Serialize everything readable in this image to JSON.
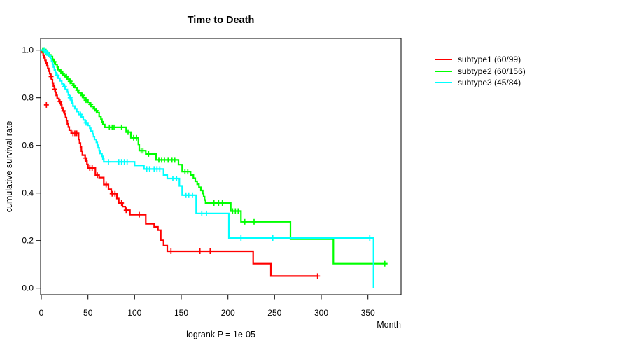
{
  "chart_data": {
    "type": "line",
    "subtype": "kaplan-meier-survival",
    "title": "Time to Death",
    "xlabel": "Month",
    "ylabel": "cumulative survival rate",
    "annotation": "logrank P = 1e-05",
    "x_ticks": [
      0,
      50,
      100,
      150,
      200,
      250,
      300,
      350
    ],
    "y_ticks": [
      0.0,
      0.2,
      0.4,
      0.6,
      0.8,
      1.0
    ],
    "xlim": [
      0,
      385
    ],
    "ylim": [
      0,
      1.05
    ],
    "grid": false,
    "legend_position": "right-outside",
    "series": [
      {
        "name": "subtype1 (60/99)",
        "color": "#FF0000",
        "events": 60,
        "n": 99,
        "steps": [
          [
            0,
            1.0
          ],
          [
            1,
            0.99
          ],
          [
            2,
            0.979
          ],
          [
            3,
            0.968
          ],
          [
            4,
            0.957
          ],
          [
            5,
            0.946
          ],
          [
            6,
            0.934
          ],
          [
            7,
            0.923
          ],
          [
            8,
            0.912
          ],
          [
            9,
            0.901
          ],
          [
            10,
            0.889
          ],
          [
            11,
            0.876
          ],
          [
            12,
            0.862
          ],
          [
            13,
            0.849
          ],
          [
            14,
            0.836
          ],
          [
            15,
            0.823
          ],
          [
            16,
            0.81
          ],
          [
            17,
            0.797
          ],
          [
            19,
            0.784
          ],
          [
            21,
            0.771
          ],
          [
            22,
            0.758
          ],
          [
            23,
            0.745
          ],
          [
            25,
            0.731
          ],
          [
            26,
            0.717
          ],
          [
            27,
            0.704
          ],
          [
            28,
            0.69
          ],
          [
            29,
            0.677
          ],
          [
            30,
            0.664
          ],
          [
            32,
            0.651
          ],
          [
            40,
            0.625
          ],
          [
            41,
            0.61
          ],
          [
            42,
            0.593
          ],
          [
            43,
            0.576
          ],
          [
            44,
            0.559
          ],
          [
            47,
            0.547
          ],
          [
            48,
            0.534
          ],
          [
            49,
            0.52
          ],
          [
            50,
            0.505
          ],
          [
            58,
            0.475
          ],
          [
            62,
            0.465
          ],
          [
            67,
            0.436
          ],
          [
            72,
            0.416
          ],
          [
            75,
            0.397
          ],
          [
            81,
            0.377
          ],
          [
            83,
            0.358
          ],
          [
            87,
            0.343
          ],
          [
            90,
            0.328
          ],
          [
            95,
            0.309
          ],
          [
            112,
            0.271
          ],
          [
            121,
            0.258
          ],
          [
            125,
            0.244
          ],
          [
            128,
            0.201
          ],
          [
            131,
            0.179
          ],
          [
            135,
            0.155
          ],
          [
            227,
            0.103
          ],
          [
            246,
            0.051
          ]
        ],
        "end": 296,
        "censors": [
          [
            5.5,
            0.77
          ],
          [
            10.5,
            0.889
          ],
          [
            14.5,
            0.836
          ],
          [
            20,
            0.784
          ],
          [
            24,
            0.745
          ],
          [
            34,
            0.651
          ],
          [
            36,
            0.651
          ],
          [
            38,
            0.651
          ],
          [
            47,
            0.547
          ],
          [
            52,
            0.505
          ],
          [
            54.5,
            0.505
          ],
          [
            60,
            0.475
          ],
          [
            69.5,
            0.436
          ],
          [
            76,
            0.397
          ],
          [
            79,
            0.397
          ],
          [
            86,
            0.358
          ],
          [
            91,
            0.328
          ],
          [
            105,
            0.309
          ],
          [
            139,
            0.155
          ],
          [
            170,
            0.155
          ],
          [
            181,
            0.155
          ],
          [
            296,
            0.051
          ]
        ]
      },
      {
        "name": "subtype2 (60/156)",
        "color": "#00FF00",
        "events": 60,
        "n": 156,
        "steps": [
          [
            0,
            1.0
          ],
          [
            4,
            0.994
          ],
          [
            6,
            0.987
          ],
          [
            8,
            0.98
          ],
          [
            10,
            0.973
          ],
          [
            12,
            0.962
          ],
          [
            13,
            0.951
          ],
          [
            15,
            0.94
          ],
          [
            17,
            0.929
          ],
          [
            18,
            0.918
          ],
          [
            20,
            0.911
          ],
          [
            22,
            0.902
          ],
          [
            24,
            0.895
          ],
          [
            26,
            0.888
          ],
          [
            28,
            0.878
          ],
          [
            30,
            0.869
          ],
          [
            32,
            0.861
          ],
          [
            34,
            0.852
          ],
          [
            36,
            0.843
          ],
          [
            38,
            0.832
          ],
          [
            40,
            0.821
          ],
          [
            43,
            0.81
          ],
          [
            45,
            0.8
          ],
          [
            47,
            0.79
          ],
          [
            50,
            0.781
          ],
          [
            52,
            0.772
          ],
          [
            54,
            0.763
          ],
          [
            56,
            0.754
          ],
          [
            58,
            0.746
          ],
          [
            60,
            0.738
          ],
          [
            62,
            0.722
          ],
          [
            64,
            0.71
          ],
          [
            65,
            0.699
          ],
          [
            66,
            0.688
          ],
          [
            68,
            0.676
          ],
          [
            91,
            0.656
          ],
          [
            96,
            0.632
          ],
          [
            104,
            0.604
          ],
          [
            105,
            0.578
          ],
          [
            112,
            0.564
          ],
          [
            123,
            0.539
          ],
          [
            147,
            0.519
          ],
          [
            151,
            0.49
          ],
          [
            160,
            0.476
          ],
          [
            163,
            0.462
          ],
          [
            165,
            0.449
          ],
          [
            167,
            0.437
          ],
          [
            169,
            0.424
          ],
          [
            171,
            0.411
          ],
          [
            173,
            0.398
          ],
          [
            174,
            0.385
          ],
          [
            175,
            0.371
          ],
          [
            176,
            0.358
          ],
          [
            203,
            0.324
          ],
          [
            214,
            0.279
          ],
          [
            267,
            0.206
          ],
          [
            313,
            0.103
          ]
        ],
        "end": 371,
        "censors": [
          [
            1.5,
            1.0
          ],
          [
            2.5,
            1.0
          ],
          [
            3.5,
            1.0
          ],
          [
            5,
            0.994
          ],
          [
            9,
            0.98
          ],
          [
            14,
            0.951
          ],
          [
            21,
            0.911
          ],
          [
            23,
            0.902
          ],
          [
            27,
            0.888
          ],
          [
            31,
            0.869
          ],
          [
            35,
            0.852
          ],
          [
            39,
            0.832
          ],
          [
            44,
            0.81
          ],
          [
            48,
            0.79
          ],
          [
            53,
            0.772
          ],
          [
            57,
            0.754
          ],
          [
            59,
            0.746
          ],
          [
            73,
            0.676
          ],
          [
            76,
            0.676
          ],
          [
            78,
            0.676
          ],
          [
            86,
            0.676
          ],
          [
            93,
            0.656
          ],
          [
            99,
            0.632
          ],
          [
            102,
            0.632
          ],
          [
            107,
            0.578
          ],
          [
            109,
            0.578
          ],
          [
            115,
            0.564
          ],
          [
            126,
            0.539
          ],
          [
            129,
            0.539
          ],
          [
            132,
            0.539
          ],
          [
            136,
            0.539
          ],
          [
            140,
            0.539
          ],
          [
            143,
            0.539
          ],
          [
            154,
            0.49
          ],
          [
            157,
            0.49
          ],
          [
            185,
            0.358
          ],
          [
            190,
            0.358
          ],
          [
            194,
            0.358
          ],
          [
            205,
            0.324
          ],
          [
            208,
            0.324
          ],
          [
            211,
            0.324
          ],
          [
            218,
            0.279
          ],
          [
            228,
            0.279
          ],
          [
            368,
            0.103
          ]
        ]
      },
      {
        "name": "subtype3 (45/84)",
        "color": "#00FFFF",
        "events": 45,
        "n": 84,
        "steps": [
          [
            0,
            1.0
          ],
          [
            5,
            0.988
          ],
          [
            8,
            0.976
          ],
          [
            10,
            0.964
          ],
          [
            11,
            0.952
          ],
          [
            12,
            0.941
          ],
          [
            13,
            0.929
          ],
          [
            14,
            0.917
          ],
          [
            15,
            0.906
          ],
          [
            16,
            0.894
          ],
          [
            18,
            0.882
          ],
          [
            20,
            0.871
          ],
          [
            22,
            0.859
          ],
          [
            24,
            0.847
          ],
          [
            26,
            0.835
          ],
          [
            28,
            0.824
          ],
          [
            29,
            0.812
          ],
          [
            30,
            0.8
          ],
          [
            32,
            0.789
          ],
          [
            33,
            0.777
          ],
          [
            34,
            0.765
          ],
          [
            36,
            0.754
          ],
          [
            38,
            0.742
          ],
          [
            40,
            0.73
          ],
          [
            43,
            0.719
          ],
          [
            45,
            0.707
          ],
          [
            47,
            0.695
          ],
          [
            50,
            0.684
          ],
          [
            52,
            0.672
          ],
          [
            53,
            0.66
          ],
          [
            55,
            0.648
          ],
          [
            56,
            0.637
          ],
          [
            57,
            0.625
          ],
          [
            59,
            0.613
          ],
          [
            60,
            0.601
          ],
          [
            61,
            0.59
          ],
          [
            62,
            0.578
          ],
          [
            63,
            0.566
          ],
          [
            65,
            0.554
          ],
          [
            66,
            0.543
          ],
          [
            67,
            0.531
          ],
          [
            100,
            0.516
          ],
          [
            110,
            0.501
          ],
          [
            131,
            0.476
          ],
          [
            135,
            0.461
          ],
          [
            148,
            0.43
          ],
          [
            151,
            0.391
          ],
          [
            166,
            0.314
          ],
          [
            201,
            0.211
          ],
          [
            356,
            0.0
          ]
        ],
        "end": 356,
        "censors": [
          [
            2,
            1.0
          ],
          [
            3.5,
            1.0
          ],
          [
            6,
            0.988
          ],
          [
            17,
            0.894
          ],
          [
            25,
            0.847
          ],
          [
            31,
            0.8
          ],
          [
            42,
            0.73
          ],
          [
            48,
            0.695
          ],
          [
            72,
            0.531
          ],
          [
            83,
            0.531
          ],
          [
            86,
            0.531
          ],
          [
            89,
            0.531
          ],
          [
            92,
            0.531
          ],
          [
            113,
            0.501
          ],
          [
            116,
            0.501
          ],
          [
            121,
            0.501
          ],
          [
            124,
            0.501
          ],
          [
            127,
            0.501
          ],
          [
            141,
            0.461
          ],
          [
            145,
            0.461
          ],
          [
            155,
            0.391
          ],
          [
            158,
            0.391
          ],
          [
            162,
            0.391
          ],
          [
            172,
            0.314
          ],
          [
            177,
            0.314
          ],
          [
            214,
            0.211
          ],
          [
            248,
            0.211
          ],
          [
            352,
            0.211
          ]
        ]
      }
    ]
  }
}
